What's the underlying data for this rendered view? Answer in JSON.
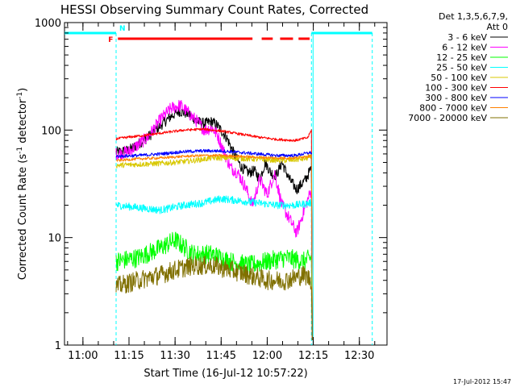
{
  "chart_data": {
    "type": "line",
    "title": "HESSI Observing Summary Count Rates, Corrected",
    "xlabel": "Start Time (16-Jul-12 10:57:22)",
    "ylabel_main": "Corrected Count Rate (s",
    "ylabel_sup1": "-1",
    "ylabel_mid": " detector",
    "ylabel_sup2": "-1",
    "ylabel_end": ")",
    "footer": "17-Jul-2012 15:47",
    "y_scale": "log",
    "ylim": [
      1,
      1000
    ],
    "xlim": [
      10.9,
      12.65
    ],
    "x_unit": "hours UT",
    "x_ticks": [
      {
        "v": 11.0,
        "label": "11:00"
      },
      {
        "v": 11.25,
        "label": "11:15"
      },
      {
        "v": 11.5,
        "label": "11:30"
      },
      {
        "v": 11.75,
        "label": "11:45"
      },
      {
        "v": 12.0,
        "label": "12:00"
      },
      {
        "v": 12.25,
        "label": "12:15"
      },
      {
        "v": 12.5,
        "label": "12:30"
      }
    ],
    "y_ticks": [
      {
        "v": 1,
        "label": "1"
      },
      {
        "v": 10,
        "label": "10"
      },
      {
        "v": 100,
        "label": "100"
      },
      {
        "v": 1000,
        "label": "1000"
      }
    ],
    "legend": {
      "header": [
        "Det 1,3,5,6,7,9,",
        "Att 0"
      ],
      "placement": "right"
    },
    "series": [
      {
        "name": "3 - 6 keV",
        "color": "#000000",
        "noise": 0.05,
        "x": [
          11.18,
          11.25,
          11.35,
          11.42,
          11.48,
          11.52,
          11.58,
          11.62,
          11.66,
          11.7,
          11.73,
          11.78,
          11.82,
          11.86,
          11.9,
          11.93,
          11.96,
          11.99,
          12.02,
          12.05,
          12.08,
          12.12,
          12.16,
          12.21,
          12.24
        ],
        "y": [
          62,
          65,
          85,
          110,
          135,
          150,
          140,
          120,
          115,
          120,
          110,
          85,
          60,
          45,
          40,
          42,
          35,
          50,
          40,
          38,
          50,
          35,
          28,
          35,
          45
        ]
      },
      {
        "name": "6 - 12 keV",
        "color": "#ff00ff",
        "noise": 0.06,
        "x": [
          11.18,
          11.25,
          11.35,
          11.42,
          11.48,
          11.53,
          11.58,
          11.62,
          11.66,
          11.7,
          11.73,
          11.77,
          11.8,
          11.84,
          11.88,
          11.92,
          11.96,
          12.0,
          12.04,
          12.08,
          12.12,
          12.16,
          12.2,
          12.24
        ],
        "y": [
          60,
          63,
          85,
          125,
          160,
          170,
          140,
          120,
          100,
          105,
          90,
          60,
          45,
          40,
          30,
          20,
          35,
          25,
          40,
          20,
          15,
          11,
          18,
          28
        ]
      },
      {
        "name": "12 - 25 keV",
        "color": "#00ff00",
        "noise": 0.09,
        "x": [
          11.18,
          11.3,
          11.42,
          11.5,
          11.6,
          11.7,
          11.8,
          11.9,
          12.0,
          12.1,
          12.2,
          12.24
        ],
        "y": [
          6.0,
          6.5,
          8.0,
          9.5,
          7.0,
          7.0,
          6.0,
          5.5,
          6.0,
          6.5,
          6.0,
          6.5
        ]
      },
      {
        "name": "25 - 50 keV",
        "color": "#00ffff",
        "noise": 0.035,
        "x": [
          11.18,
          11.3,
          11.42,
          11.55,
          11.65,
          11.75,
          11.85,
          11.95,
          12.05,
          12.15,
          12.24
        ],
        "y": [
          20,
          19,
          18,
          20,
          21,
          23,
          22,
          21,
          20,
          20,
          21
        ]
      },
      {
        "name": "50 - 100 keV",
        "color": "#d8c800",
        "noise": 0.025,
        "x": [
          11.18,
          11.3,
          11.42,
          11.5,
          11.6,
          11.7,
          11.8,
          11.9,
          12.0,
          12.1,
          12.2,
          12.24
        ],
        "y": [
          47,
          48,
          49,
          50,
          52,
          55,
          55,
          54,
          53,
          52,
          54,
          56
        ]
      },
      {
        "name": "100 - 300 keV",
        "color": "#ff0000",
        "noise": 0.012,
        "x": [
          11.18,
          11.25,
          11.35,
          11.45,
          11.55,
          11.65,
          11.75,
          11.85,
          11.95,
          12.05,
          12.15,
          12.22,
          12.24
        ],
        "y": [
          83,
          86,
          90,
          95,
          100,
          102,
          98,
          92,
          86,
          82,
          80,
          85,
          100
        ]
      },
      {
        "name": "300 - 800 keV",
        "color": "#0000ff",
        "noise": 0.015,
        "x": [
          11.18,
          11.3,
          11.42,
          11.55,
          11.65,
          11.75,
          11.85,
          11.95,
          12.05,
          12.15,
          12.24
        ],
        "y": [
          57,
          58,
          60,
          63,
          64,
          64,
          62,
          60,
          58,
          58,
          62
        ]
      },
      {
        "name": "800 - 7000 keV",
        "color": "#ff8000",
        "noise": 0.012,
        "x": [
          11.18,
          11.3,
          11.42,
          11.55,
          11.65,
          11.75,
          11.85,
          11.95,
          12.05,
          12.15,
          12.24
        ],
        "y": [
          52,
          54,
          55,
          57,
          58,
          58,
          57,
          56,
          55,
          55,
          58
        ]
      },
      {
        "name": "7000 - 20000 keV",
        "color": "#807000",
        "noise": 0.09,
        "x": [
          11.18,
          11.3,
          11.42,
          11.5,
          11.6,
          11.7,
          11.8,
          11.9,
          12.0,
          12.1,
          12.2,
          12.24
        ],
        "y": [
          3.5,
          4.0,
          4.5,
          5.0,
          5.5,
          5.5,
          5.0,
          4.5,
          4.0,
          4.0,
          4.5,
          4.0
        ]
      }
    ],
    "night_intervals": [
      {
        "start": 10.9,
        "end": 11.18,
        "label": ""
      },
      {
        "start": 12.24,
        "end": 12.57,
        "label": ""
      }
    ],
    "saa_marker": {
      "label": "N",
      "x": 11.18
    },
    "flare_marker": {
      "label": "F",
      "segments": [
        [
          11.19,
          11.92
        ],
        [
          11.97,
          12.03
        ],
        [
          12.07,
          12.14
        ],
        [
          12.17,
          12.23
        ]
      ]
    },
    "dashed_lines": [
      11.18,
      12.24,
      12.57
    ],
    "colors": {
      "night": "#00ffff",
      "flare": "#ff0000",
      "axis": "#000000"
    }
  }
}
